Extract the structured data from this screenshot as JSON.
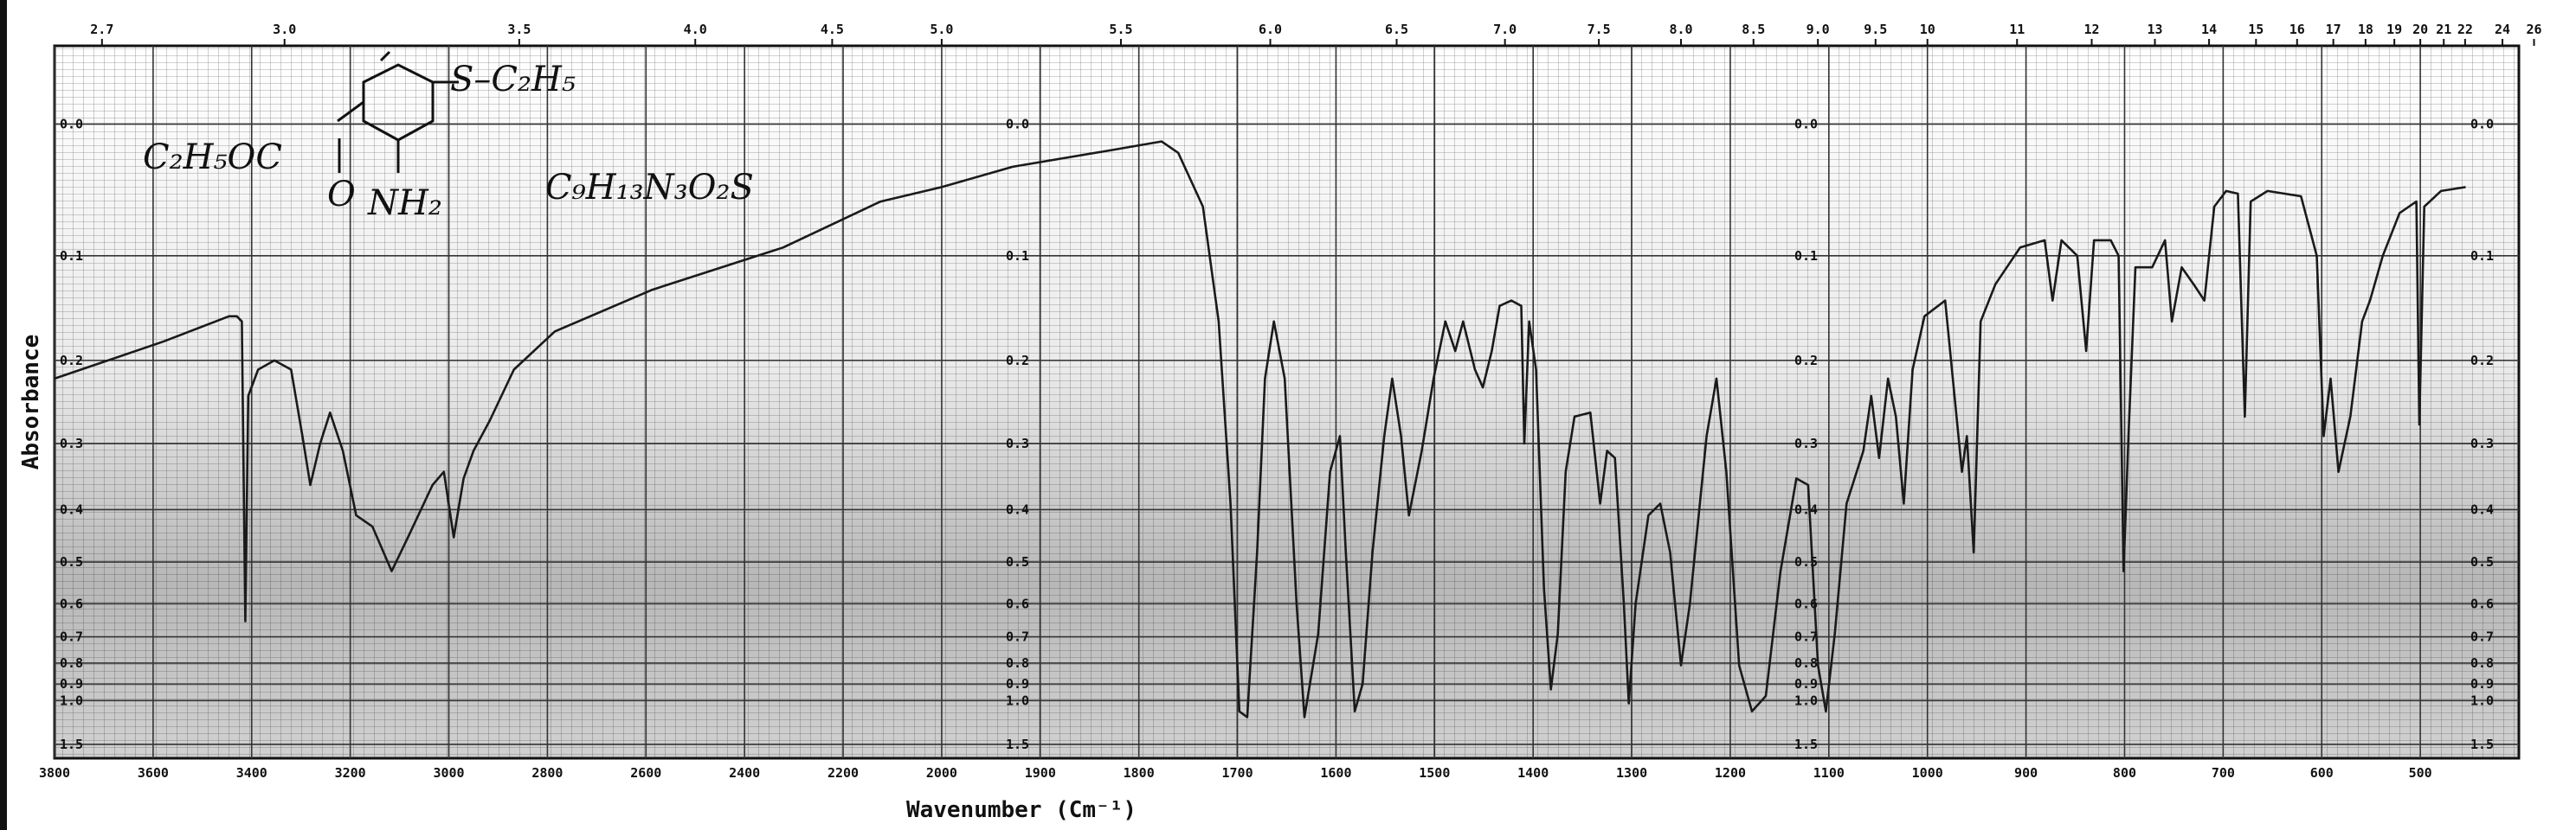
{
  "chart_data": {
    "type": "line",
    "xlabel": "Wavenumber (Cm⁻¹)",
    "ylabel": "Absorbance",
    "annotations": [
      "S–C₂H₅",
      "C₂H₅OC",
      "O",
      "NH₂",
      "C₉H₁₃N₃O₂S"
    ],
    "color": "#1a1a1a",
    "xlim": [
      3800,
      400
    ],
    "x_scale_change": {
      "at": 2000,
      "factor": 2
    },
    "xticks": [
      3800,
      3600,
      3400,
      3200,
      3000,
      2800,
      2600,
      2400,
      2200,
      2000,
      1900,
      1800,
      1700,
      1600,
      1500,
      1400,
      1300,
      1200,
      1100,
      1000,
      900,
      800,
      700,
      600,
      500
    ],
    "x2ticks": [
      2.7,
      {
        "value": 3,
        "label": "3.0"
      },
      3.5,
      {
        "value": 4,
        "label": "4.0"
      },
      4.5,
      {
        "value": 5,
        "label": "5.0"
      },
      5.5,
      {
        "value": 6,
        "label": "6.0"
      },
      6.5,
      {
        "value": 7,
        "label": "7.0"
      },
      7.5,
      {
        "value": 8,
        "label": "8.0"
      },
      8.5,
      {
        "value": 9,
        "label": "9.0"
      },
      9.5,
      10,
      11,
      12,
      13,
      14,
      15,
      16,
      17,
      18,
      19,
      20,
      21,
      22,
      24,
      26
    ],
    "yscale": "absorbance",
    "ylim": [
      -0.05,
      2
    ],
    "yticks": [
      {
        "value": 0,
        "label": "0.0"
      },
      0.1,
      0.2,
      0.3,
      0.4,
      0.5,
      0.6,
      0.7,
      0.8,
      0.9,
      {
        "value": 1,
        "label": "1.0"
      },
      1.5
    ],
    "grid": true,
    "x": [
      3800,
      3578,
      3446,
      3430,
      3420,
      3413,
      3407,
      3387,
      3354,
      3320,
      3297,
      3281,
      3261,
      3241,
      3215,
      3188,
      3155,
      3116,
      3083,
      3033,
      3010,
      2990,
      2970,
      2950,
      2917,
      2868,
      2785,
      2587,
      2322,
      2124,
      2000,
      1928,
      1827,
      1777,
      1760,
      1735,
      1719,
      1707,
      1698,
      1690,
      1680,
      1672,
      1663,
      1652,
      1640,
      1632,
      1618,
      1606,
      1596,
      1590,
      1581,
      1573,
      1563,
      1551,
      1543,
      1534,
      1526,
      1513,
      1501,
      1489,
      1479,
      1471,
      1459,
      1451,
      1442,
      1434,
      1422,
      1412,
      1409,
      1404,
      1397,
      1389,
      1382,
      1375,
      1367,
      1358,
      1342,
      1332,
      1325,
      1317,
      1308,
      1303,
      1296,
      1283,
      1271,
      1261,
      1250,
      1241,
      1224,
      1214,
      1204,
      1191,
      1178,
      1164,
      1149,
      1133,
      1121,
      1111,
      1103,
      1094,
      1082,
      1065,
      1057,
      1049,
      1040,
      1032,
      1024,
      1015,
      1003,
      982,
      965,
      960,
      953,
      946,
      931,
      906,
      881,
      873,
      864,
      848,
      839,
      831,
      814,
      806,
      801,
      796,
      789,
      772,
      759,
      752,
      742,
      730,
      719,
      709,
      697,
      685,
      678,
      672,
      655,
      621,
      605,
      598,
      591,
      583,
      571,
      559,
      551,
      538,
      521,
      504,
      501,
      496,
      479,
      454
    ],
    "values": [
      0.22,
      0.18,
      0.155,
      0.155,
      0.16,
      0.65,
      0.24,
      0.21,
      0.2,
      0.21,
      0.29,
      0.36,
      0.3,
      0.26,
      0.31,
      0.41,
      0.43,
      0.52,
      0.45,
      0.36,
      0.34,
      0.45,
      0.35,
      0.31,
      0.27,
      0.21,
      0.17,
      0.13,
      0.093,
      0.056,
      0.045,
      0.03,
      0.018,
      0.012,
      0.02,
      0.06,
      0.16,
      0.39,
      1.08,
      1.13,
      0.48,
      0.22,
      0.16,
      0.22,
      0.6,
      1.13,
      0.69,
      0.34,
      0.29,
      0.48,
      1.08,
      0.9,
      0.48,
      0.29,
      0.22,
      0.29,
      0.41,
      0.31,
      0.22,
      0.16,
      0.19,
      0.16,
      0.21,
      0.23,
      0.19,
      0.145,
      0.14,
      0.145,
      0.3,
      0.16,
      0.21,
      0.56,
      0.93,
      0.69,
      0.34,
      0.265,
      0.26,
      0.39,
      0.31,
      0.32,
      0.6,
      1.02,
      0.6,
      0.41,
      0.39,
      0.48,
      0.81,
      0.6,
      0.29,
      0.22,
      0.34,
      0.81,
      1.08,
      0.97,
      0.52,
      0.35,
      0.36,
      0.81,
      1.08,
      0.69,
      0.39,
      0.31,
      0.24,
      0.32,
      0.22,
      0.265,
      0.39,
      0.21,
      0.155,
      0.14,
      0.34,
      0.29,
      0.48,
      0.16,
      0.125,
      0.093,
      0.087,
      0.14,
      0.087,
      0.1,
      0.19,
      0.087,
      0.087,
      0.1,
      0.52,
      0.29,
      0.11,
      0.11,
      0.087,
      0.16,
      0.11,
      0.125,
      0.14,
      0.06,
      0.048,
      0.05,
      0.265,
      0.056,
      0.048,
      0.052,
      0.1,
      0.29,
      0.22,
      0.34,
      0.265,
      0.16,
      0.14,
      0.1,
      0.065,
      0.056,
      0.275,
      0.06,
      0.048,
      0.045
    ]
  }
}
